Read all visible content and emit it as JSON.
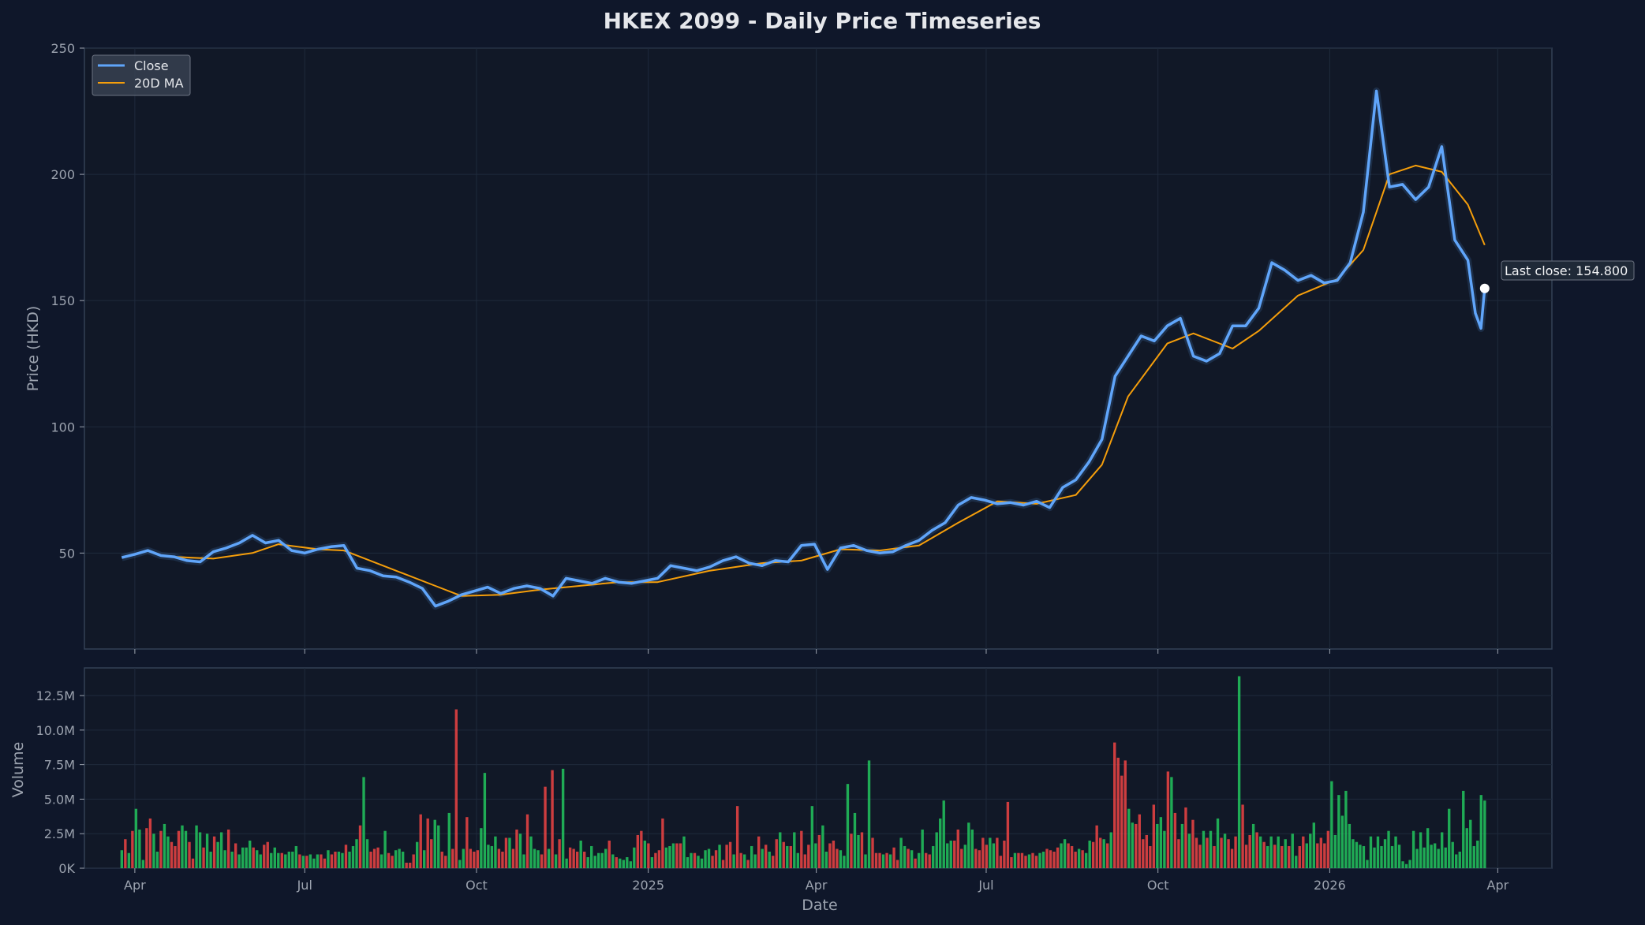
{
  "chart_data": {
    "type": "line",
    "title": "HKEX 2099 - Daily Price Timeseries",
    "xlabel": "Date",
    "ylabel": "Price (HKD)",
    "volume_ylabel": "Volume",
    "x_ticks": [
      {
        "label": "Apr",
        "date": "2024-04-01"
      },
      {
        "label": "Jul",
        "date": "2024-07-01"
      },
      {
        "label": "Oct",
        "date": "2024-10-01"
      },
      {
        "label": "2025",
        "date": "2025-01-01"
      },
      {
        "label": "Apr",
        "date": "2025-04-01"
      },
      {
        "label": "Jul",
        "date": "2025-07-01"
      },
      {
        "label": "Oct",
        "date": "2025-10-01"
      },
      {
        "label": "2026",
        "date": "2026-01-01"
      },
      {
        "label": "Apr",
        "date": "2026-04-01"
      }
    ],
    "x_range": [
      "2024-03-05",
      "2026-04-30"
    ],
    "price_axis": {
      "ylim": [
        12,
        250
      ],
      "ticks": [
        {
          "value": 50,
          "label": "50"
        },
        {
          "value": 100,
          "label": "100"
        },
        {
          "value": 150,
          "label": "150"
        },
        {
          "value": 200,
          "label": "200"
        },
        {
          "value": 250,
          "label": "250"
        }
      ]
    },
    "volume_axis": {
      "ylim": [
        0,
        14500000
      ],
      "ticks": [
        {
          "value": 0,
          "label": "0K"
        },
        {
          "value": 2500000,
          "label": "2.5M"
        },
        {
          "value": 5000000,
          "label": "5.0M"
        },
        {
          "value": 7500000,
          "label": "7.5M"
        },
        {
          "value": 10000000,
          "label": "10.0M"
        },
        {
          "value": 12500000,
          "label": "12.5M"
        }
      ]
    },
    "grid": true,
    "legend": {
      "position": "top-left"
    },
    "series": [
      {
        "name": "Close",
        "color": "#60a5fa",
        "points": [
          [
            "2024-03-25",
            48.2
          ],
          [
            "2024-04-01",
            49.5
          ],
          [
            "2024-04-08",
            51.0
          ],
          [
            "2024-04-15",
            49.0
          ],
          [
            "2024-04-22",
            48.5
          ],
          [
            "2024-04-29",
            47.0
          ],
          [
            "2024-05-06",
            46.5
          ],
          [
            "2024-05-13",
            50.5
          ],
          [
            "2024-05-20",
            52.0
          ],
          [
            "2024-05-27",
            54.0
          ],
          [
            "2024-06-03",
            57.0
          ],
          [
            "2024-06-10",
            54.0
          ],
          [
            "2024-06-17",
            55.0
          ],
          [
            "2024-06-24",
            51.0
          ],
          [
            "2024-07-01",
            50.0
          ],
          [
            "2024-07-08",
            51.5
          ],
          [
            "2024-07-15",
            52.5
          ],
          [
            "2024-07-22",
            53.0
          ],
          [
            "2024-07-29",
            44.0
          ],
          [
            "2024-08-05",
            43.0
          ],
          [
            "2024-08-12",
            41.0
          ],
          [
            "2024-08-19",
            40.5
          ],
          [
            "2024-08-26",
            38.5
          ],
          [
            "2024-09-02",
            36.0
          ],
          [
            "2024-09-09",
            29.0
          ],
          [
            "2024-09-16",
            31.0
          ],
          [
            "2024-09-23",
            33.5
          ],
          [
            "2024-09-30",
            35.0
          ],
          [
            "2024-10-07",
            36.5
          ],
          [
            "2024-10-14",
            34.0
          ],
          [
            "2024-10-21",
            36.0
          ],
          [
            "2024-10-28",
            37.0
          ],
          [
            "2024-11-04",
            36.0
          ],
          [
            "2024-11-11",
            33.0
          ],
          [
            "2024-11-18",
            40.0
          ],
          [
            "2024-11-25",
            39.0
          ],
          [
            "2024-12-02",
            38.0
          ],
          [
            "2024-12-09",
            40.0
          ],
          [
            "2024-12-16",
            38.5
          ],
          [
            "2024-12-23",
            38.0
          ],
          [
            "2024-12-30",
            39.0
          ],
          [
            "2025-01-06",
            40.0
          ],
          [
            "2025-01-13",
            45.0
          ],
          [
            "2025-01-20",
            44.0
          ],
          [
            "2025-01-27",
            43.0
          ],
          [
            "2025-02-03",
            44.5
          ],
          [
            "2025-02-10",
            47.0
          ],
          [
            "2025-02-17",
            48.5
          ],
          [
            "2025-02-24",
            46.0
          ],
          [
            "2025-03-03",
            45.0
          ],
          [
            "2025-03-10",
            47.0
          ],
          [
            "2025-03-17",
            46.5
          ],
          [
            "2025-03-24",
            53.0
          ],
          [
            "2025-03-31",
            53.5
          ],
          [
            "2025-04-07",
            43.5
          ],
          [
            "2025-04-14",
            52.0
          ],
          [
            "2025-04-21",
            53.0
          ],
          [
            "2025-04-28",
            51.0
          ],
          [
            "2025-05-05",
            50.0
          ],
          [
            "2025-05-12",
            50.5
          ],
          [
            "2025-05-19",
            53.0
          ],
          [
            "2025-05-26",
            55.0
          ],
          [
            "2025-06-02",
            59.0
          ],
          [
            "2025-06-09",
            62.0
          ],
          [
            "2025-06-16",
            69.0
          ],
          [
            "2025-06-23",
            72.0
          ],
          [
            "2025-06-30",
            71.0
          ],
          [
            "2025-07-07",
            69.5
          ],
          [
            "2025-07-14",
            70.0
          ],
          [
            "2025-07-21",
            69.0
          ],
          [
            "2025-07-28",
            70.5
          ],
          [
            "2025-08-04",
            68.0
          ],
          [
            "2025-08-11",
            76.0
          ],
          [
            "2025-08-18",
            79.0
          ],
          [
            "2025-08-25",
            86.0
          ],
          [
            "2025-09-01",
            95.0
          ],
          [
            "2025-09-08",
            120.0
          ],
          [
            "2025-09-15",
            128.0
          ],
          [
            "2025-09-22",
            136.0
          ],
          [
            "2025-09-29",
            134.0
          ],
          [
            "2025-10-06",
            140.0
          ],
          [
            "2025-10-13",
            143.0
          ],
          [
            "2025-10-20",
            128.0
          ],
          [
            "2025-10-27",
            126.0
          ],
          [
            "2025-11-03",
            129.0
          ],
          [
            "2025-11-10",
            140.0
          ],
          [
            "2025-11-17",
            140.0
          ],
          [
            "2025-11-24",
            147.0
          ],
          [
            "2025-12-01",
            165.0
          ],
          [
            "2025-12-08",
            162.0
          ],
          [
            "2025-12-15",
            158.0
          ],
          [
            "2025-12-22",
            160.0
          ],
          [
            "2025-12-29",
            157.0
          ],
          [
            "2026-01-05",
            158.0
          ],
          [
            "2026-01-12",
            165.0
          ],
          [
            "2026-01-19",
            185.0
          ],
          [
            "2026-01-26",
            233.0
          ],
          [
            "2026-02-02",
            195.0
          ],
          [
            "2026-02-09",
            196.0
          ],
          [
            "2026-02-16",
            190.0
          ],
          [
            "2026-02-23",
            195.0
          ],
          [
            "2026-03-02",
            211.0
          ],
          [
            "2026-03-09",
            174.0
          ],
          [
            "2026-03-16",
            166.0
          ],
          [
            "2026-03-20",
            145.0
          ],
          [
            "2026-03-23",
            139.0
          ],
          [
            "2026-03-25",
            154.8
          ]
        ]
      },
      {
        "name": "20D MA",
        "color": "#f59e0b",
        "points": [
          [
            "2024-04-22",
            48.5
          ],
          [
            "2024-05-13",
            47.8
          ],
          [
            "2024-06-03",
            50.0
          ],
          [
            "2024-06-17",
            53.5
          ],
          [
            "2024-07-08",
            51.5
          ],
          [
            "2024-07-22",
            51.0
          ],
          [
            "2024-08-05",
            47.0
          ],
          [
            "2024-08-26",
            41.0
          ],
          [
            "2024-09-09",
            37.0
          ],
          [
            "2024-09-23",
            33.0
          ],
          [
            "2024-10-14",
            33.5
          ],
          [
            "2024-11-04",
            35.5
          ],
          [
            "2024-11-25",
            37.0
          ],
          [
            "2024-12-16",
            38.5
          ],
          [
            "2025-01-06",
            38.5
          ],
          [
            "2025-02-03",
            43.0
          ],
          [
            "2025-03-03",
            46.0
          ],
          [
            "2025-03-24",
            47.0
          ],
          [
            "2025-04-14",
            51.5
          ],
          [
            "2025-05-05",
            51.0
          ],
          [
            "2025-05-26",
            53.0
          ],
          [
            "2025-06-16",
            62.0
          ],
          [
            "2025-07-07",
            70.5
          ],
          [
            "2025-07-28",
            69.5
          ],
          [
            "2025-08-18",
            73.0
          ],
          [
            "2025-09-01",
            85.0
          ],
          [
            "2025-09-15",
            112.0
          ],
          [
            "2025-10-06",
            133.0
          ],
          [
            "2025-10-20",
            137.0
          ],
          [
            "2025-11-10",
            131.0
          ],
          [
            "2025-11-24",
            138.0
          ],
          [
            "2025-12-15",
            152.0
          ],
          [
            "2026-01-05",
            158.5
          ],
          [
            "2026-01-19",
            170.0
          ],
          [
            "2026-02-02",
            200.0
          ],
          [
            "2026-02-16",
            203.5
          ],
          [
            "2026-03-02",
            201.0
          ],
          [
            "2026-03-16",
            188.0
          ],
          [
            "2026-03-25",
            172.0
          ]
        ]
      }
    ],
    "volume": {
      "up_color": "#22c55e",
      "down_color": "#ef4444",
      "start_date": "2024-03-25",
      "end_date": "2026-03-25",
      "values": [
        1.3,
        2.1,
        1.1,
        2.7,
        4.3,
        2.8,
        0.6,
        2.9,
        3.6,
        2.5,
        1.2,
        2.7,
        3.2,
        2.3,
        1.9,
        1.6,
        2.7,
        3.1,
        2.7,
        1.9,
        0.7,
        3.1,
        2.6,
        1.5,
        2.5,
        1.2,
        2.3,
        1.9,
        2.6,
        1.3,
        2.8,
        1.2,
        1.8,
        1.0,
        1.5,
        1.5,
        2.0,
        1.5,
        1.3,
        1.0,
        1.7,
        1.9,
        1.1,
        1.5,
        1.1,
        1.1,
        1.0,
        1.2,
        1.2,
        1.6,
        1.0,
        0.9,
        0.9,
        1.0,
        0.7,
        1.0,
        1.0,
        0.7,
        1.3,
        1.0,
        1.2,
        1.2,
        1.1,
        1.7,
        1.2,
        1.6,
        2.1,
        3.1,
        6.6,
        2.1,
        1.2,
        1.4,
        1.5,
        1.0,
        2.7,
        1.1,
        0.9,
        1.3,
        1.4,
        1.2,
        0.4,
        0.4,
        1.0,
        1.9,
        3.9,
        1.3,
        3.6,
        2.1,
        3.5,
        3.1,
        1.2,
        0.9,
        4.0,
        1.4,
        11.5,
        0.6,
        1.4,
        3.7,
        1.4,
        1.2,
        1.3,
        2.9,
        6.9,
        1.7,
        1.6,
        2.3,
        1.4,
        1.2,
        2.2,
        2.2,
        1.4,
        2.8,
        2.5,
        1.0,
        3.9,
        2.3,
        1.4,
        1.3,
        1.0,
        5.9,
        1.4,
        7.1,
        1.0,
        2.1,
        7.2,
        0.7,
        1.5,
        1.4,
        1.2,
        2.0,
        1.2,
        0.8,
        1.6,
        0.9,
        1.1,
        1.1,
        1.4,
        2.0,
        1.0,
        0.8,
        0.7,
        0.6,
        0.8,
        0.5,
        1.5,
        2.4,
        2.7,
        2.0,
        1.8,
        0.8,
        1.1,
        1.3,
        3.6,
        1.5,
        1.6,
        1.8,
        1.8,
        1.8,
        2.3,
        0.8,
        1.1,
        1.1,
        0.9,
        0.7,
        1.3,
        1.4,
        0.9,
        1.3,
        1.7,
        0.6,
        1.7,
        1.9,
        1.0,
        4.5,
        1.1,
        1.0,
        0.6,
        1.6,
        1.0,
        2.3,
        1.4,
        1.7,
        1.2,
        0.9,
        2.1,
        2.6,
        1.9,
        1.6,
        1.6,
        2.6,
        1.1,
        2.7,
        1.0,
        1.7,
        4.5,
        1.8,
        2.4,
        3.1,
        1.2,
        1.8,
        2.0,
        1.4,
        1.3,
        0.9,
        6.1,
        2.5,
        4.0,
        2.4,
        2.6,
        1.0,
        7.8,
        2.2,
        1.1,
        1.1,
        1.0,
        1.1,
        1.0,
        1.5,
        0.6,
        2.2,
        1.6,
        1.4,
        1.3,
        0.7,
        1.1,
        2.8,
        1.1,
        1.0,
        1.6,
        2.6,
        3.6,
        4.9,
        1.8,
        2.0,
        2.0,
        2.8,
        1.4,
        1.7,
        3.3,
        2.8,
        1.4,
        1.3,
        2.2,
        1.7,
        2.2,
        1.8,
        2.2,
        0.9,
        2.0,
        4.8,
        0.8,
        1.1,
        1.1,
        1.1,
        0.9,
        1.0,
        1.1,
        0.9,
        1.1,
        1.2,
        1.4,
        1.3,
        1.2,
        1.5,
        1.8,
        2.1,
        1.8,
        1.6,
        1.2,
        1.4,
        1.3,
        1.1,
        2.0,
        1.9,
        3.1,
        2.2,
        2.1,
        1.8,
        2.6,
        9.1,
        8.0,
        6.7,
        7.8,
        4.3,
        3.3,
        3.2,
        3.9,
        2.1,
        2.4,
        1.6,
        4.6,
        3.2,
        3.7,
        2.7,
        7.0,
        6.6,
        4.0,
        2.1,
        3.2,
        4.4,
        2.5,
        3.5,
        2.2,
        1.7,
        2.7,
        2.2,
        2.7,
        1.6,
        3.6,
        2.2,
        2.5,
        2.1,
        1.4,
        2.3,
        13.9,
        4.6,
        1.7,
        2.4,
        3.2,
        2.6,
        2.3,
        1.9,
        1.6,
        2.3,
        1.7,
        2.3,
        1.6,
        2.1,
        1.6,
        2.5,
        0.9,
        1.6,
        2.3,
        1.8,
        2.5,
        3.3,
        1.8,
        2.2,
        1.8,
        2.7,
        6.3,
        2.4,
        5.3,
        3.8,
        5.6,
        3.2,
        2.1,
        1.9,
        1.7,
        1.6,
        0.6,
        2.3,
        1.5,
        2.3,
        1.6,
        2.1,
        2.7,
        1.6,
        2.3,
        1.7,
        0.5,
        0.3,
        0.6,
        2.7,
        1.4,
        2.6,
        1.5,
        2.9,
        1.7,
        1.8,
        1.4,
        2.6,
        1.5,
        4.3,
        1.9,
        1.0,
        1.2,
        5.6,
        2.9,
        3.5,
        1.6,
        2.0,
        5.3,
        4.9
      ],
      "down_flags": "01010001100100111001100100100010100001001100010000101000110110010001001110011000111010110011011001111000001110110010001101010011101000000101000001101011100011000100001101110110100101011010100111001001110001001001110101100101001100000011100011110011111011101100111100111010011101011110011111100010110101110101010111011101010010101001100011110000",
      "value_unit": "millions"
    },
    "annotation": {
      "label": "Last close: 154.800",
      "date": "2026-03-25",
      "value": 154.8
    }
  }
}
